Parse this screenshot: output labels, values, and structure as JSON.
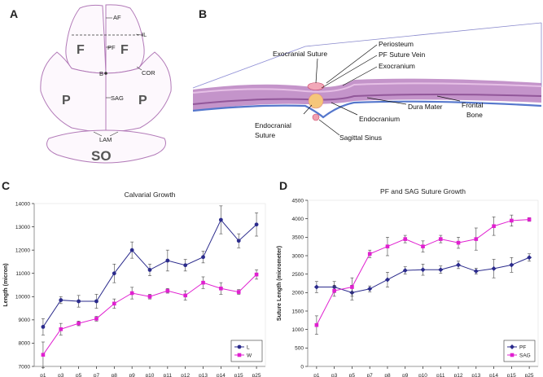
{
  "panels": {
    "a": {
      "letter": "A",
      "labels": {
        "af": "AF",
        "il": "IL",
        "pf": "PF",
        "cor": "COR",
        "b": "B",
        "sag": "SAG",
        "lam": "LAM",
        "f_left": "F",
        "f_right": "F",
        "p_left": "P",
        "p_right": "P",
        "so": "SO"
      }
    },
    "b": {
      "letter": "B",
      "labels": {
        "exocranial_suture": "Exocranial Suture",
        "periosteum": "Periosteum",
        "pf_suture_vein": "PF Suture Vein",
        "exocranium": "Exocranium",
        "dura_mater": "Dura Mater",
        "frontal_bone_1": "Frontal",
        "frontal_bone_2": "Bone",
        "endocranium": "Endocranium",
        "endocranial_suture_1": "Endocranial",
        "endocranial_suture_2": "Suture",
        "sagittal_sinus": "Sagittal Sinus"
      }
    },
    "c": {
      "letter": "C"
    },
    "d": {
      "letter": "D"
    }
  },
  "colors": {
    "series_a": "#2b2b8c",
    "series_b": "#e020d0",
    "bone_stroke": "#b27ab8",
    "dura": "#5577cc"
  },
  "chart_data": [
    {
      "type": "line",
      "title": "Calvarial Growth",
      "xlabel": "",
      "ylabel": "Length (micron)",
      "categories": [
        "p1",
        "p3",
        "p5",
        "p7",
        "p8",
        "p9",
        "p10",
        "p11",
        "p12",
        "p13",
        "p14",
        "p15",
        "p25"
      ],
      "ylim": [
        7000,
        14000
      ],
      "yticks": [
        7000,
        8000,
        9000,
        10000,
        11000,
        12000,
        13000,
        14000
      ],
      "legend_position": "bottom-right",
      "series": [
        {
          "name": "L",
          "color": "#2b2b8c",
          "marker": "circle",
          "values": [
            8700,
            9850,
            9800,
            9800,
            11000,
            12000,
            11150,
            11550,
            11350,
            11700,
            13300,
            12400,
            13100
          ],
          "errors": [
            350,
            150,
            250,
            300,
            400,
            350,
            250,
            450,
            250,
            250,
            600,
            300,
            500
          ]
        },
        {
          "name": "W",
          "color": "#e020d0",
          "marker": "square",
          "values": [
            7500,
            8600,
            8850,
            9050,
            9700,
            10150,
            10000,
            10250,
            10050,
            10600,
            10350,
            10200,
            10950
          ],
          "errors": [
            550,
            250,
            100,
            100,
            200,
            250,
            100,
            100,
            200,
            250,
            250,
            100,
            200
          ]
        }
      ]
    },
    {
      "type": "line",
      "title": "PF and SAG Suture Growth",
      "xlabel": "",
      "ylabel": "Suture Length (micrometer)",
      "categories": [
        "p1",
        "p3",
        "p5",
        "p7",
        "p8",
        "p9",
        "p10",
        "p11",
        "p12",
        "p13",
        "p14",
        "p15",
        "p25"
      ],
      "ylim": [
        0,
        4500
      ],
      "yticks": [
        0,
        500,
        1000,
        1500,
        2000,
        2500,
        3000,
        3500,
        4000,
        4500
      ],
      "legend_position": "bottom-right",
      "series": [
        {
          "name": "PF",
          "color": "#2b2b8c",
          "marker": "diamond",
          "values": [
            2150,
            2150,
            2000,
            2100,
            2350,
            2600,
            2620,
            2620,
            2750,
            2580,
            2650,
            2750,
            2950
          ],
          "errors": [
            150,
            150,
            200,
            80,
            200,
            100,
            150,
            100,
            100,
            80,
            250,
            200,
            100
          ]
        },
        {
          "name": "SAG",
          "color": "#e020d0",
          "marker": "square",
          "values": [
            1120,
            2050,
            2150,
            3050,
            3250,
            3450,
            3250,
            3450,
            3350,
            3450,
            3800,
            3950,
            3980
          ],
          "errors": [
            250,
            150,
            250,
            100,
            250,
            100,
            150,
            100,
            150,
            300,
            250,
            150,
            50
          ]
        }
      ]
    }
  ]
}
